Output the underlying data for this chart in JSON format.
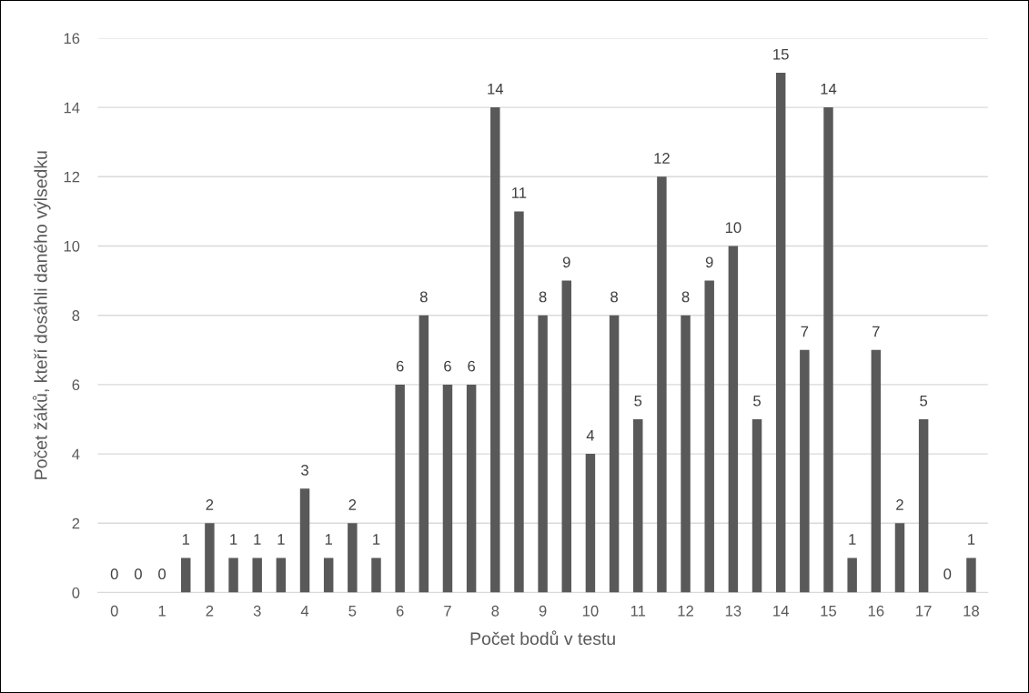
{
  "chart_data": {
    "type": "bar",
    "xlabel": "Počet bodů v testu",
    "ylabel": "Počet žáků, kteří dosáhli daného výlsedku",
    "categories": [
      "0",
      null,
      "1",
      null,
      "2",
      null,
      "3",
      null,
      "4",
      null,
      "5",
      null,
      "6",
      null,
      "7",
      null,
      "8",
      null,
      "9",
      null,
      "10",
      null,
      "11",
      null,
      "12",
      null,
      "13",
      null,
      "14",
      null,
      "15",
      null,
      "16",
      null,
      "17",
      null,
      "18"
    ],
    "values": [
      0,
      0,
      0,
      1,
      2,
      1,
      1,
      1,
      3,
      1,
      2,
      1,
      6,
      8,
      6,
      6,
      14,
      11,
      8,
      9,
      4,
      8,
      5,
      12,
      8,
      9,
      10,
      5,
      15,
      7,
      14,
      1,
      7,
      2,
      5,
      0,
      1
    ],
    "color": "#595959",
    "ylim": [
      0,
      16
    ],
    "yticks": [
      0,
      2,
      4,
      6,
      8,
      10,
      12,
      14,
      16
    ],
    "grid": "y",
    "data_labels": true
  }
}
